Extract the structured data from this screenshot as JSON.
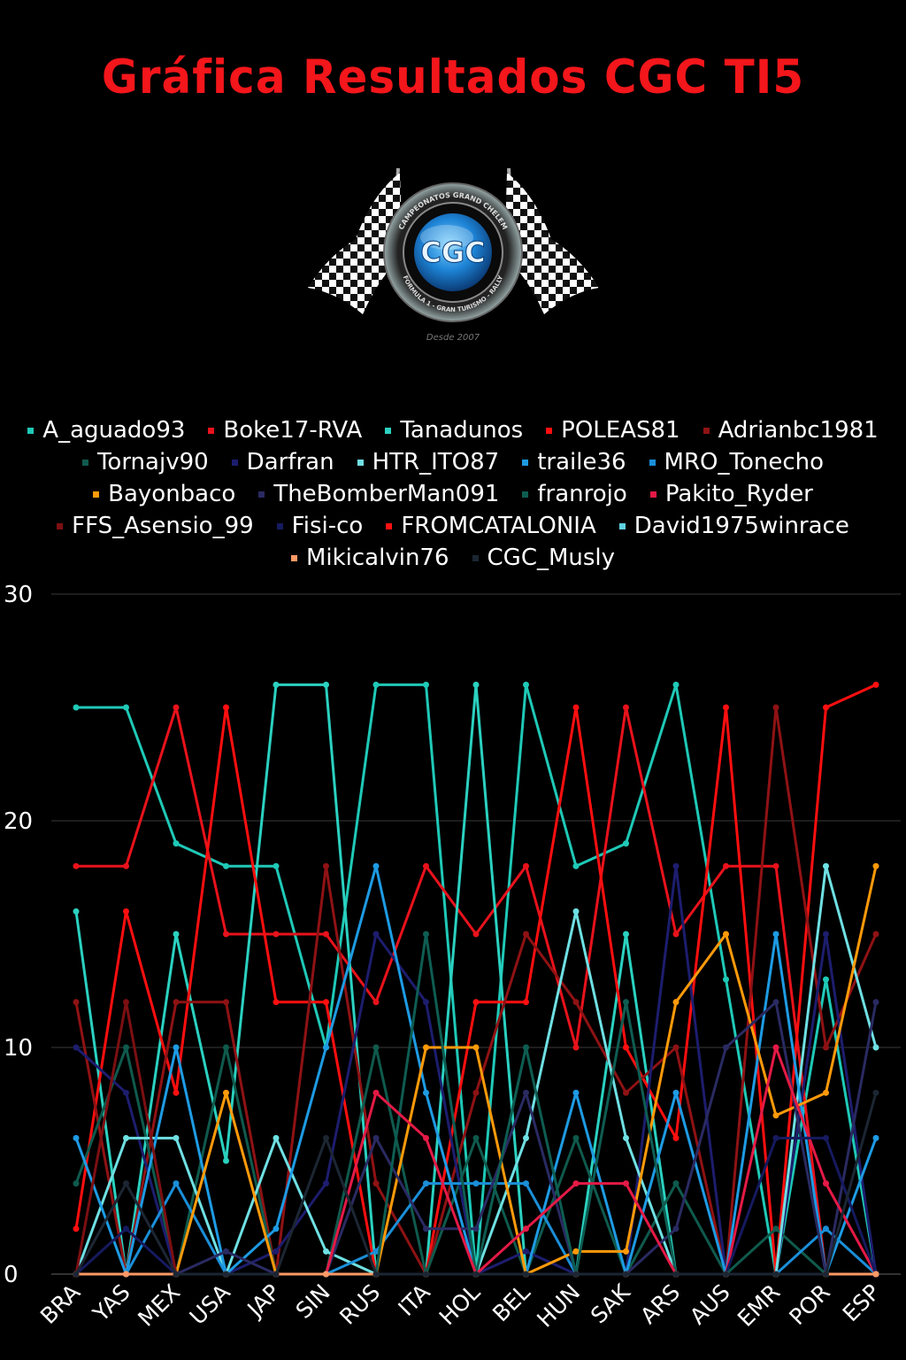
{
  "title": "Gráfica Resultados CGC TI5",
  "logo": {
    "text": "CGC",
    "ring_top": "CAMPEONATOS GRAND CHELEM",
    "ring_bottom": "FORMULA 1 - GRAN TURISMO - RALLY",
    "since": "Desde 2007"
  },
  "chart_data": {
    "type": "line",
    "title": "Gráfica Resultados CGC TI5",
    "xlabel": "",
    "ylabel": "",
    "ylim": [
      0,
      30
    ],
    "yticks": [
      0,
      10,
      20,
      30
    ],
    "grid": true,
    "legend_position": "top",
    "categories": [
      "BRA",
      "YAS",
      "MEX",
      "USA",
      "JAP",
      "SIN",
      "RUS",
      "ITA",
      "HOL",
      "BEL",
      "HUN",
      "SAK",
      "ARS",
      "AUS",
      "EMR",
      "POR",
      "ESP"
    ],
    "series": [
      {
        "name": "A_aguado93",
        "color": "#1fc9b7",
        "values": [
          25,
          25,
          19,
          18,
          18,
          10,
          26,
          26,
          0,
          26,
          18,
          19,
          26,
          13,
          0,
          13,
          0
        ]
      },
      {
        "name": "Boke17-RVA",
        "color": "#e8121b",
        "values": [
          18,
          18,
          25,
          15,
          15,
          15,
          12,
          18,
          15,
          18,
          10,
          25,
          15,
          18,
          18,
          0,
          0
        ]
      },
      {
        "name": "Tanadunos",
        "color": "#2bd1c0",
        "values": [
          16,
          0,
          15,
          5,
          26,
          26,
          0,
          0,
          26,
          0,
          0,
          15,
          0,
          0,
          0,
          0,
          0
        ]
      },
      {
        "name": "POLEAS81",
        "color": "#ff0f0f",
        "values": [
          2,
          16,
          8,
          25,
          12,
          12,
          0,
          0,
          12,
          12,
          25,
          10,
          6,
          25,
          0,
          25,
          26
        ]
      },
      {
        "name": "Adrianbc1981",
        "color": "#8f1214",
        "values": [
          12,
          0,
          12,
          12,
          0,
          18,
          4,
          0,
          8,
          15,
          12,
          8,
          10,
          0,
          25,
          10,
          15
        ]
      },
      {
        "name": "Tornajv90",
        "color": "#0f5a4d",
        "values": [
          4,
          10,
          0,
          10,
          0,
          0,
          10,
          0,
          6,
          0,
          6,
          0,
          4,
          0,
          2,
          0,
          0
        ]
      },
      {
        "name": "Darfran",
        "color": "#1d1d6e",
        "values": [
          10,
          8,
          0,
          0,
          1,
          4,
          15,
          12,
          0,
          1,
          0,
          0,
          18,
          0,
          0,
          15,
          0
        ]
      },
      {
        "name": "HTR_ITO87",
        "color": "#6fe0e3",
        "values": [
          0,
          6,
          6,
          0,
          6,
          1,
          0,
          0,
          0,
          6,
          16,
          6,
          0,
          0,
          0,
          18,
          10
        ]
      },
      {
        "name": "traile36",
        "color": "#1e9be3",
        "values": [
          6,
          0,
          10,
          0,
          2,
          10,
          18,
          8,
          0,
          0,
          8,
          0,
          8,
          0,
          15,
          0,
          6
        ]
      },
      {
        "name": "MRO_Tonecho",
        "color": "#1a8fd8",
        "values": [
          0,
          0,
          4,
          0,
          0,
          0,
          1,
          4,
          4,
          4,
          0,
          0,
          0,
          0,
          0,
          2,
          0
        ]
      },
      {
        "name": "Bayonbaco",
        "color": "#ff9a0a",
        "values": [
          0,
          0,
          0,
          8,
          0,
          0,
          0,
          10,
          10,
          0,
          1,
          1,
          12,
          15,
          7,
          8,
          18
        ]
      },
      {
        "name": "TheBomberMan091",
        "color": "#2a2a62",
        "values": [
          0,
          0,
          0,
          1,
          0,
          0,
          6,
          2,
          2,
          8,
          0,
          0,
          2,
          10,
          12,
          0,
          12
        ]
      },
      {
        "name": "franrojo",
        "color": "#0e5d52",
        "values": [
          0,
          0,
          0,
          0,
          0,
          0,
          0,
          15,
          0,
          10,
          0,
          12,
          0,
          0,
          0,
          0,
          0
        ]
      },
      {
        "name": "Pakito_Ryder",
        "color": "#e41a46",
        "values": [
          0,
          0,
          0,
          0,
          0,
          0,
          8,
          6,
          0,
          2,
          4,
          4,
          0,
          0,
          10,
          4,
          0
        ]
      },
      {
        "name": "FFS_Asensio_99",
        "color": "#7c0f12",
        "values": [
          0,
          12,
          0,
          0,
          0,
          0,
          0,
          0,
          0,
          0,
          0,
          0,
          0,
          0,
          0,
          0,
          0
        ]
      },
      {
        "name": "Fisi-co",
        "color": "#161a5e",
        "values": [
          0,
          2,
          0,
          0,
          0,
          0,
          0,
          0,
          0,
          0,
          0,
          0,
          0,
          0,
          6,
          6,
          0
        ]
      },
      {
        "name": "FROMCATALONIA",
        "color": "#ff1111",
        "values": [
          0,
          0,
          0,
          0,
          0,
          0,
          0,
          0,
          0,
          0,
          0,
          0,
          0,
          0,
          0,
          0,
          0
        ]
      },
      {
        "name": "David1975winrace",
        "color": "#5fd3e4",
        "values": [
          0,
          0,
          0,
          0,
          0,
          0,
          0,
          0,
          0,
          0,
          0,
          0,
          0,
          0,
          0,
          0,
          0
        ]
      },
      {
        "name": "Mikicalvin76",
        "color": "#ff9966",
        "values": [
          0,
          0,
          0,
          0,
          0,
          0,
          0,
          0,
          0,
          0,
          0,
          0,
          0,
          0,
          0,
          0,
          0
        ]
      },
      {
        "name": "CGC_Musly",
        "color": "#1c2633",
        "values": [
          0,
          4,
          0,
          0,
          0,
          6,
          0,
          0,
          0,
          0,
          0,
          0,
          0,
          0,
          0,
          0,
          8
        ]
      }
    ]
  }
}
